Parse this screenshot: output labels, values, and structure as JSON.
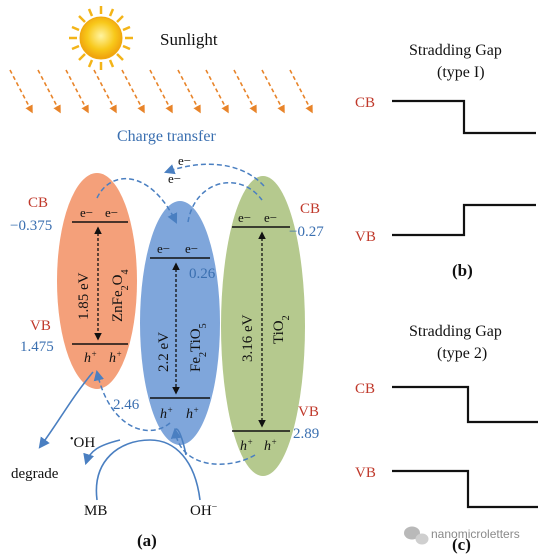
{
  "labels": {
    "sunlight": "Sunlight",
    "charge_transfer": "Charge transfer",
    "electron_pair_top": "e−",
    "electron_pair_bottom": "e−",
    "cb": "CB",
    "vb": "VB",
    "hole": "h",
    "hole_sup": "+",
    "electron": "e−",
    "degrade": "degrade",
    "mb": "MB",
    "oh_radical": "OH",
    "oh_radical_dot": "•",
    "oh_minus": "OH",
    "oh_minus_sup": "−",
    "panel_a": "(a)",
    "panel_b": "(b)",
    "panel_c": "(c)"
  },
  "materials": {
    "znfe2o4": {
      "formula_main": "ZnFe",
      "formula_sub1": "2",
      "formula_mid": "O",
      "formula_sub2": "4",
      "gap": "1.85 eV",
      "cb": "−0.375",
      "vb": "1.475",
      "color": "#f4a07a"
    },
    "fe2tio5": {
      "formula_main": "Fe",
      "formula_sub1": "2",
      "formula_mid": "TiO",
      "formula_sub2": "5",
      "gap": "2.2 eV",
      "cb": "0.26",
      "vb": "2.46",
      "color": "#7fa6db"
    },
    "tio2": {
      "formula_main": "TiO",
      "formula_sub1": "2",
      "gap": "3.16 eV",
      "cb": "−0.27",
      "vb": "2.89",
      "color": "#b5c98e"
    }
  },
  "panel_b": {
    "title_line1": "Stradding Gap",
    "title_line2": "(type I)",
    "cb": "CB",
    "vb": "VB"
  },
  "panel_c": {
    "title_line1": "Stradding Gap",
    "title_line2": "(type 2)",
    "cb": "CB",
    "vb": "VB"
  },
  "watermark": "nanomicroletters",
  "colors": {
    "red_label": "#c0392b",
    "blue_label": "#3a6fb0",
    "arrow_blue": "#4a7fc1",
    "sun_ray": "#e8842a",
    "sun": "#f6c21a"
  }
}
